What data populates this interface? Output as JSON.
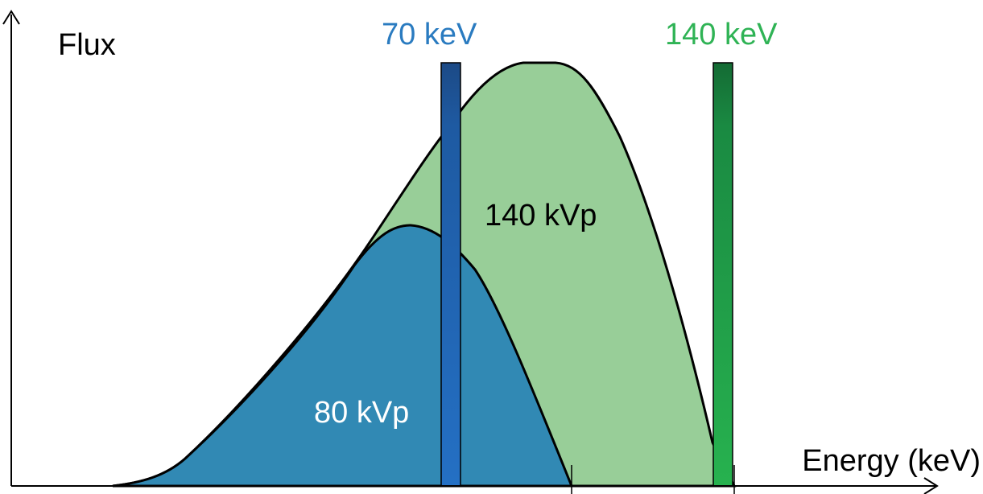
{
  "axes": {
    "y_label": "Flux",
    "x_label": "Energy (keV)"
  },
  "spectra": [
    {
      "label": "140 kVp",
      "color": "#98ce98"
    },
    {
      "label": "80 kVp",
      "color": "#3189b4"
    }
  ],
  "energy_bins": [
    {
      "label": "70 keV",
      "color": "#2a7bc0",
      "bar_color": "#1f63b4"
    },
    {
      "label": "140 keV",
      "color": "#2fb355",
      "bar_color": "#22a44a"
    }
  ]
}
